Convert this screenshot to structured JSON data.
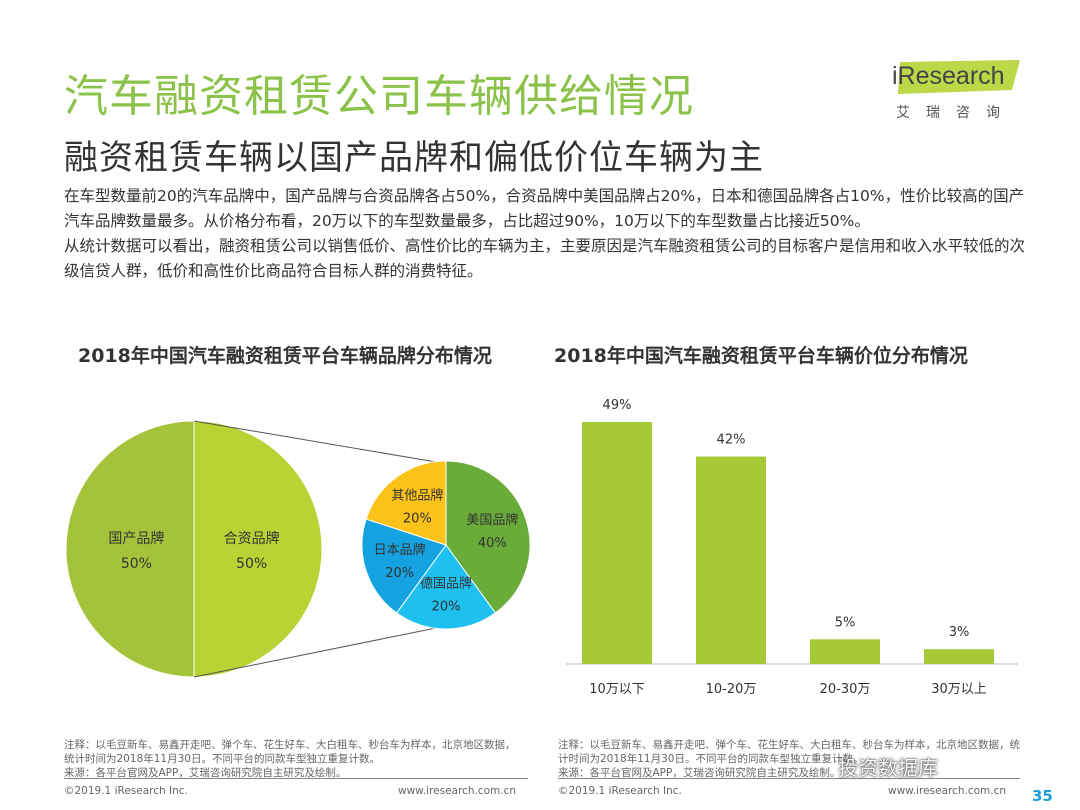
{
  "header": {
    "title": "汽车融资租赁公司车辆供给情况",
    "subtitle": "融资租赁车辆以国产品牌和偏低价位车辆为主"
  },
  "logo": {
    "text": "iResearch",
    "subtext": "艾瑞咨询"
  },
  "body": {
    "paragraph1": "在车型数量前20的汽车品牌中，国产品牌与合资品牌各占50%，合资品牌中美国品牌占20%，日本和德国品牌各占10%，性价比较高的国产汽车品牌数量最多。从价格分布看，20万以下的车型数量最多，占比超过90%，10万以下的车型数量占比接近50%。",
    "paragraph2": "从统计数据可以看出，融资租赁公司以销售低价、高性价比的车辆为主，主要原因是汽车融资租赁公司的目标客户是信用和收入水平较低的次级信贷人群，低价和高性价比商品符合目标人群的消费特征。"
  },
  "chart_data": [
    {
      "type": "pie",
      "title": "2018年中国汽车融资租赁平台车辆品牌分布情况",
      "main": [
        {
          "label": "国产品牌",
          "value": 50,
          "value_label": "50%",
          "color": "#a5c33a"
        },
        {
          "label": "合资品牌",
          "value": 50,
          "value_label": "50%",
          "color": "#b8d334"
        }
      ],
      "breakdown_of": "合资品牌",
      "breakdown": [
        {
          "label": "美国品牌",
          "value": 40,
          "value_label": "40%",
          "color": "#6aac3a"
        },
        {
          "label": "德国品牌",
          "value": 20,
          "value_label": "20%",
          "color": "#1ec0f0"
        },
        {
          "label": "日本品牌",
          "value": 20,
          "value_label": "20%",
          "color": "#14a3e0"
        },
        {
          "label": "其他品牌",
          "value": 20,
          "value_label": "20%",
          "color": "#fbc21a"
        }
      ]
    },
    {
      "type": "bar",
      "title": "2018年中国汽车融资租赁平台车辆价位分布情况",
      "categories": [
        "10万以下",
        "10-20万",
        "20-30万",
        "30万以上"
      ],
      "values": [
        49,
        42,
        5,
        3
      ],
      "value_labels": [
        "49%",
        "42%",
        "5%",
        "3%"
      ],
      "color": "#a6c936",
      "ylim": [
        0,
        50
      ]
    }
  ],
  "footnotes": {
    "left": {
      "note": "注释：以毛豆新车、易鑫开走吧、弹个车、花生好车、大白租车、秒台车为样本，北京地区数据，统计时间为2018年11月30日。不同平台的同款车型独立重复计数。",
      "source": "来源：各平台官网及APP，艾瑞咨询研究院自主研究及绘制。"
    },
    "right": {
      "note": "注释：以毛豆新车、易鑫开走吧、弹个车、花生好车、大白租车、秒台车为样本，北京地区数据，统计时间为2018年11月30日。不同平台的同款车型独立重复计数。",
      "source": "来源：各平台官网及APP，艾瑞咨询研究院自主研究及绘制。"
    }
  },
  "footer": {
    "copyright": "©2019.1 iResearch Inc.",
    "url": "www.iresearch.com.cn",
    "watermark": "投资数据库",
    "page": "35"
  }
}
